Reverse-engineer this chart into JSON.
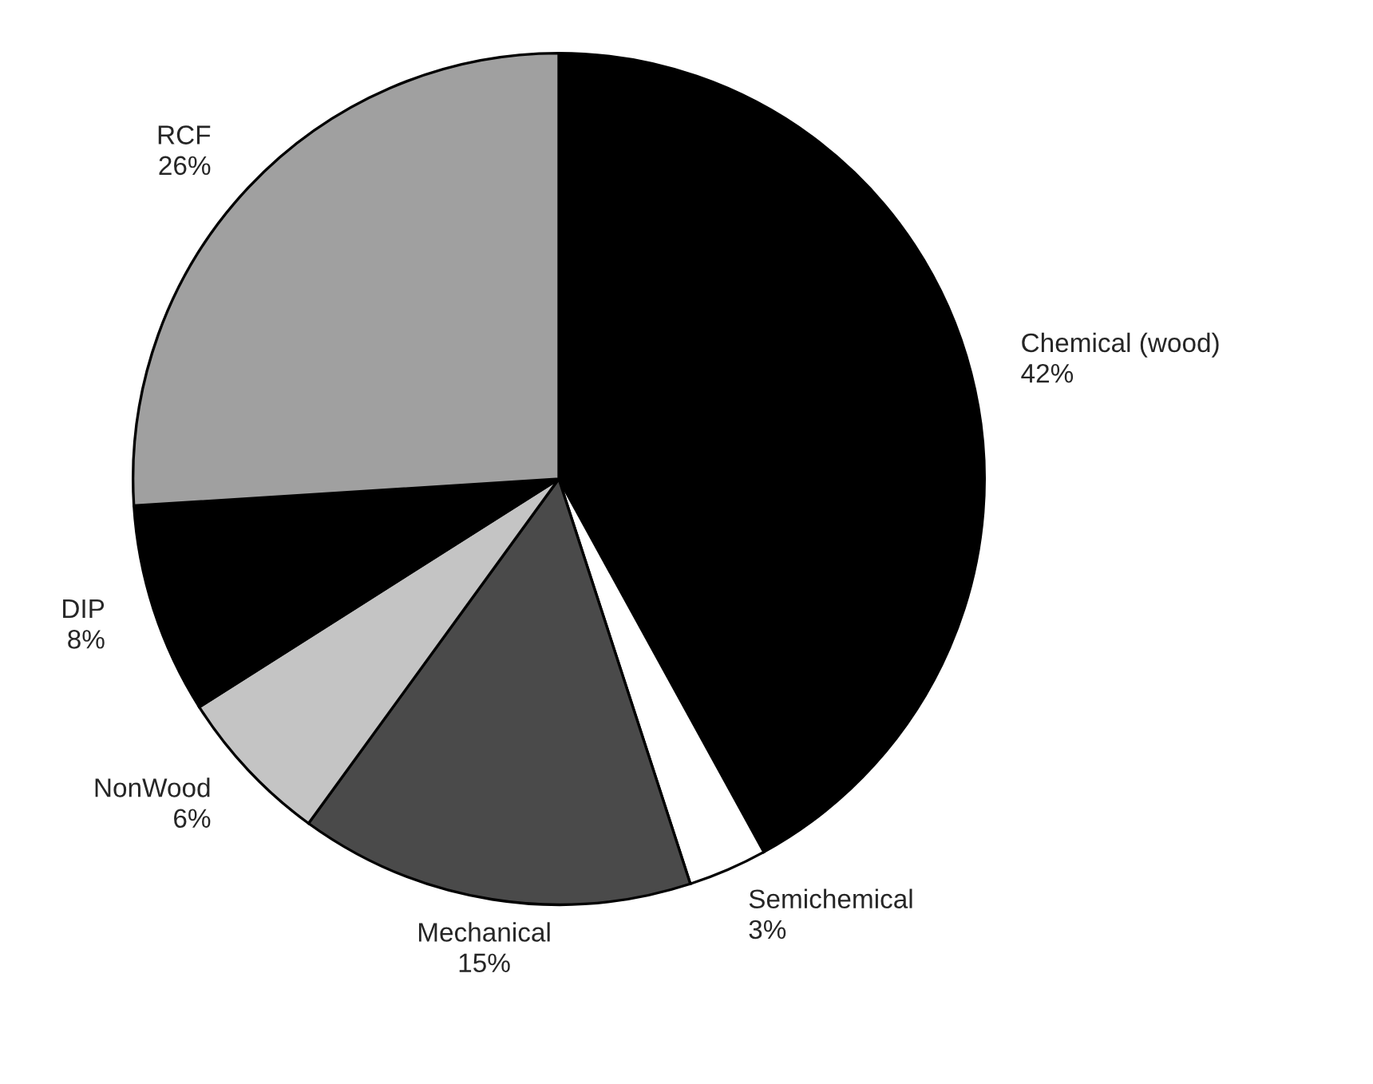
{
  "chart_data": {
    "type": "pie",
    "categories": [
      "Chemical (wood)",
      "Semichemical",
      "Mechanical",
      "NonWood",
      "DIP",
      "RCF"
    ],
    "values": [
      42,
      3,
      15,
      6,
      8,
      26
    ],
    "value_labels": [
      "42%",
      "3%",
      "15%",
      "6%",
      "8%",
      "26%"
    ],
    "colors": [
      "#000000",
      "#ffffff",
      "#4a4a4a",
      "#c4c4c4",
      "#000000",
      "#a0a0a0"
    ]
  }
}
